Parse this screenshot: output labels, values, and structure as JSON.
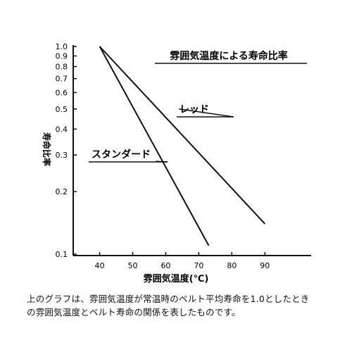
{
  "chart_data": {
    "type": "line",
    "title": "雰囲気温度による寿命比率",
    "xlabel": "雰囲気温度(℃)",
    "ylabel": "寿命比率",
    "y_scale": "log",
    "xlim": [
      32,
      104
    ],
    "ylim": [
      0.1,
      1.0
    ],
    "x_ticks": [
      40,
      50,
      60,
      70,
      80,
      90
    ],
    "y_ticks": [
      1.0,
      0.9,
      0.8,
      0.7,
      0.6,
      0.5,
      0.4,
      0.3,
      0.2,
      0.1
    ],
    "y_tick_labels": [
      "1.0",
      "0.9",
      "0.8",
      "0.7",
      "0.6",
      "0.5",
      "0.4",
      "0.3",
      "0.2",
      "0.1"
    ],
    "grid": false,
    "series": [
      {
        "name": "レッド",
        "x": [
          40,
          90
        ],
        "y": [
          1.0,
          0.14
        ],
        "label_x": 64,
        "label_y": 0.5
      },
      {
        "name": "スタンダード",
        "x": [
          40,
          73
        ],
        "y": [
          1.0,
          0.11
        ],
        "label_x": 57,
        "label_y": 0.28
      }
    ]
  },
  "caption": {
    "line1": "上のグラフは、雰囲気温度が常温時のベルト平均寿命を1.0としたとき",
    "line2": "の雰囲気温度とベルト寿命の関係を表したものです。"
  }
}
